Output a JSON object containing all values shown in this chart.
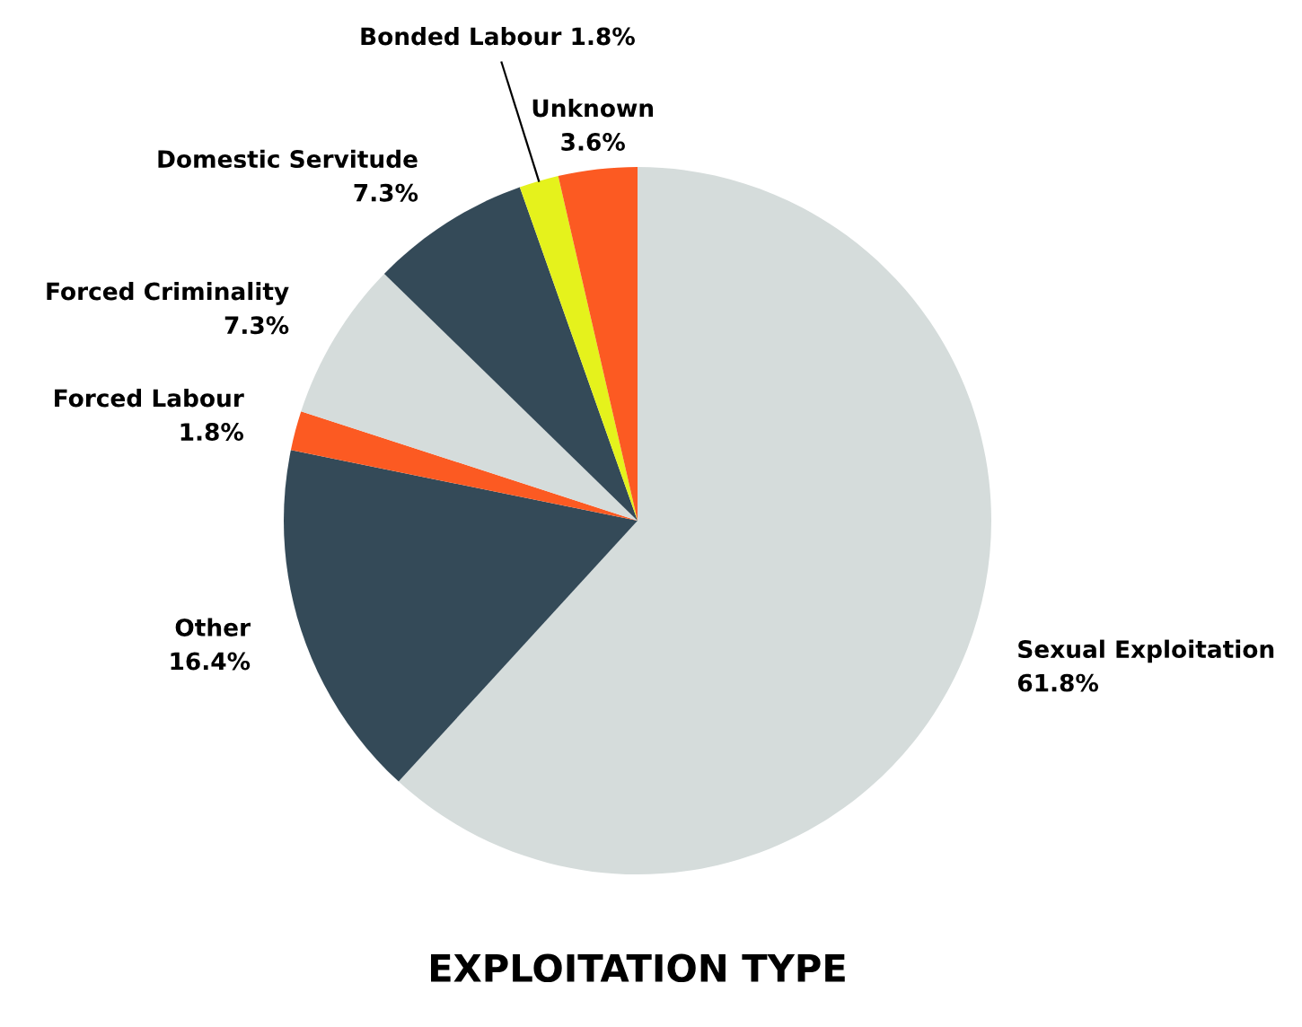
{
  "chart_data": {
    "type": "pie",
    "title": "EXPLOITATION TYPE",
    "categories": [
      "Sexual Exploitation",
      "Other",
      "Forced Labour",
      "Forced Criminality",
      "Domestic Servitude",
      "Bonded Labour",
      "Unknown"
    ],
    "values": [
      61.8,
      16.4,
      1.8,
      7.3,
      7.3,
      1.8,
      3.6
    ],
    "colors": [
      "#d5dcdb",
      "#344a58",
      "#fc5a22",
      "#d5dcdb",
      "#344a58",
      "#e5f21c",
      "#fc5a22"
    ],
    "value_labels": [
      "61.8%",
      "16.4%",
      "1.8%",
      "7.3%",
      "7.3%",
      "1.8%",
      "3.6%"
    ],
    "legend": false
  }
}
